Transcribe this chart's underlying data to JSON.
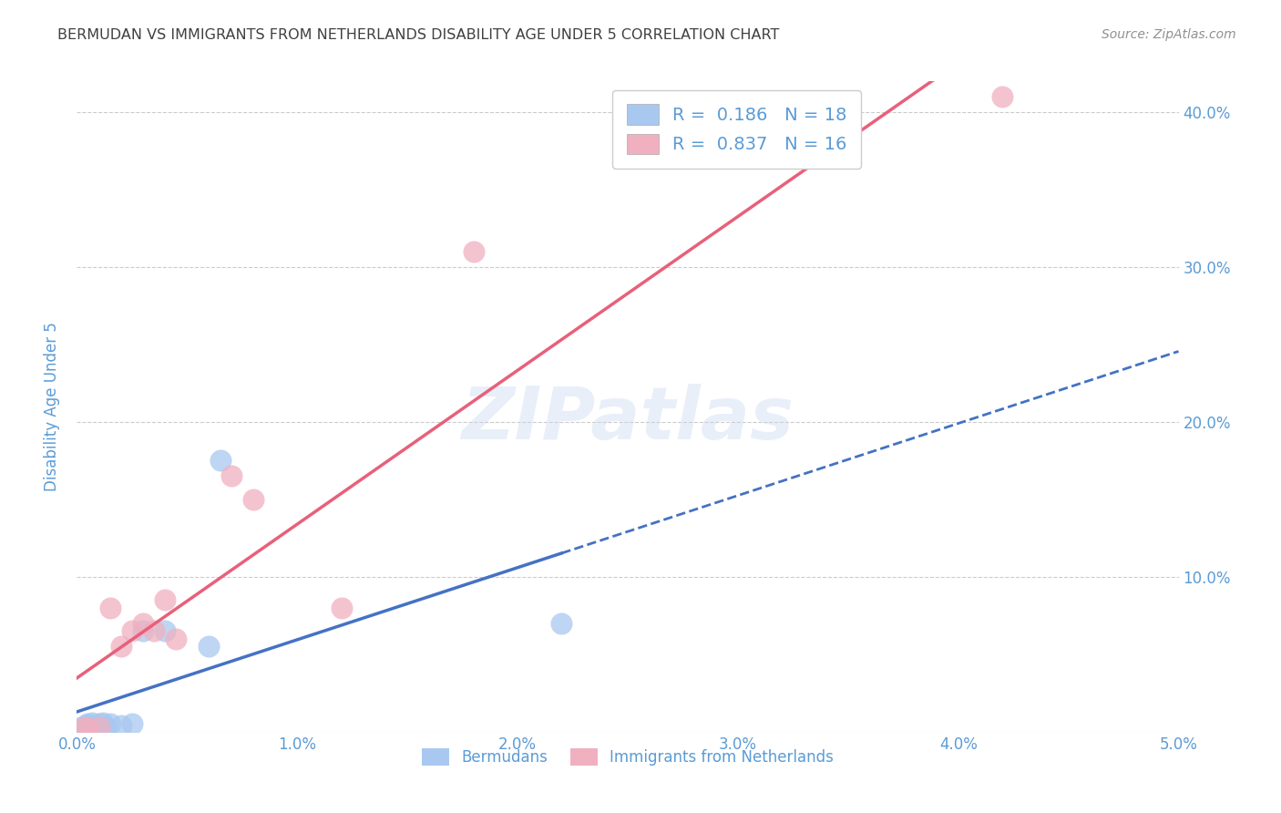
{
  "title": "BERMUDAN VS IMMIGRANTS FROM NETHERLANDS DISABILITY AGE UNDER 5 CORRELATION CHART",
  "source": "Source: ZipAtlas.com",
  "ylabel": "Disability Age Under 5",
  "legend_blue_R": "R =  0.186",
  "legend_blue_N": "N = 18",
  "legend_pink_R": "R =  0.837",
  "legend_pink_N": "N = 16",
  "watermark": "ZIPatlas",
  "blue_scatter": [
    [
      0.0002,
      0.003
    ],
    [
      0.0003,
      0.002
    ],
    [
      0.0004,
      0.004
    ],
    [
      0.0005,
      0.005
    ],
    [
      0.0006,
      0.003
    ],
    [
      0.0007,
      0.006
    ],
    [
      0.0008,
      0.004
    ],
    [
      0.001,
      0.005
    ],
    [
      0.0012,
      0.006
    ],
    [
      0.0013,
      0.003
    ],
    [
      0.0015,
      0.005
    ],
    [
      0.002,
      0.004
    ],
    [
      0.0025,
      0.005
    ],
    [
      0.003,
      0.065
    ],
    [
      0.004,
      0.065
    ],
    [
      0.006,
      0.055
    ],
    [
      0.0065,
      0.175
    ],
    [
      0.022,
      0.07
    ]
  ],
  "pink_scatter": [
    [
      0.0003,
      0.003
    ],
    [
      0.0005,
      0.002
    ],
    [
      0.001,
      0.003
    ],
    [
      0.0015,
      0.08
    ],
    [
      0.002,
      0.055
    ],
    [
      0.0025,
      0.065
    ],
    [
      0.003,
      0.07
    ],
    [
      0.0035,
      0.065
    ],
    [
      0.004,
      0.085
    ],
    [
      0.0045,
      0.06
    ],
    [
      0.007,
      0.165
    ],
    [
      0.008,
      0.15
    ],
    [
      0.012,
      0.08
    ],
    [
      0.018,
      0.31
    ],
    [
      0.033,
      0.37
    ],
    [
      0.042,
      0.41
    ]
  ],
  "blue_color": "#A8C8F0",
  "pink_color": "#F0B0C0",
  "blue_line_color": "#4472C4",
  "pink_line_color": "#E8607A",
  "axis_color": "#5B9BD5",
  "grid_color": "#CCCCCC",
  "title_color": "#404040",
  "source_color": "#909090",
  "background_color": "#FFFFFF",
  "xlim": [
    0,
    0.05
  ],
  "ylim": [
    0,
    0.42
  ],
  "yticks": [
    0.0,
    0.1,
    0.2,
    0.3,
    0.4
  ],
  "ytick_labels": [
    "",
    "10.0%",
    "20.0%",
    "30.0%",
    "40.0%"
  ],
  "xtick_vals": [
    0.0,
    0.01,
    0.02,
    0.03,
    0.04,
    0.05
  ],
  "xtick_labels": [
    "0.0%",
    "1.0%",
    "2.0%",
    "3.0%",
    "4.0%",
    "5.0%"
  ]
}
